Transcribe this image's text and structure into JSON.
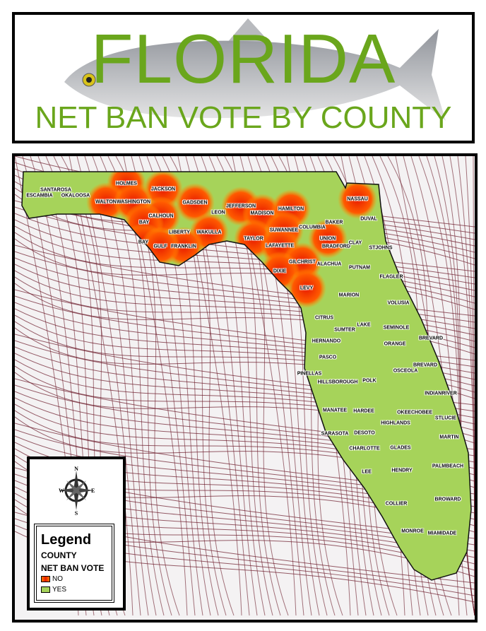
{
  "header": {
    "title": "FLORIDA",
    "subtitle": "NET BAN VOTE BY COUNTY"
  },
  "colors": {
    "no": "#ff5a00",
    "no_center": "#e81c00",
    "yes": "#a6d35a",
    "title_green": "#6aa61c",
    "net": "#6b1a2a"
  },
  "legend": {
    "title": "Legend",
    "layer": "COUNTY",
    "field": "NET BAN VOTE",
    "items": [
      {
        "label": "NO",
        "value": "no"
      },
      {
        "label": "YES",
        "value": "yes"
      }
    ]
  },
  "compass": {
    "icon": "compass-rose-icon",
    "n": "N",
    "s": "S",
    "e": "E",
    "w": "W"
  },
  "counties": [
    {
      "name": "ESCAMBIA",
      "vote": "YES"
    },
    {
      "name": "SANTAROSA",
      "vote": "YES"
    },
    {
      "name": "OKALOOSA",
      "vote": "YES"
    },
    {
      "name": "HOLMES",
      "vote": "NO"
    },
    {
      "name": "JACKSON",
      "vote": "NO"
    },
    {
      "name": "WALTON",
      "vote": "NO"
    },
    {
      "name": "WASHINGTON",
      "vote": "NO"
    },
    {
      "name": "GADSDEN",
      "vote": "NO"
    },
    {
      "name": "CALHOUN",
      "vote": "NO"
    },
    {
      "name": "BAY",
      "vote": "NO"
    },
    {
      "name": "BAY",
      "vote": "NO"
    },
    {
      "name": "LIBERTY",
      "vote": "YES"
    },
    {
      "name": "WAKULLA",
      "vote": "NO"
    },
    {
      "name": "FRANKLIN",
      "vote": "NO"
    },
    {
      "name": "GULF",
      "vote": "NO"
    },
    {
      "name": "LEON",
      "vote": "YES"
    },
    {
      "name": "JEFFERSON",
      "vote": "NO"
    },
    {
      "name": "MADISON",
      "vote": "NO"
    },
    {
      "name": "HAMILTON",
      "vote": "NO"
    },
    {
      "name": "TAYLOR",
      "vote": "NO"
    },
    {
      "name": "SUWANNEE",
      "vote": "NO"
    },
    {
      "name": "LAFAYETTE",
      "vote": "NO"
    },
    {
      "name": "COLUMBIA",
      "vote": "YES"
    },
    {
      "name": "BAKER",
      "vote": "YES"
    },
    {
      "name": "NASSAU",
      "vote": "NO"
    },
    {
      "name": "DUVAL",
      "vote": "YES"
    },
    {
      "name": "UNION",
      "vote": "NO"
    },
    {
      "name": "BRADFORD",
      "vote": "YES"
    },
    {
      "name": "CLAY",
      "vote": "YES"
    },
    {
      "name": "STJOHNS",
      "vote": "YES"
    },
    {
      "name": "GILCHRIST",
      "vote": "NO"
    },
    {
      "name": "ALACHUA",
      "vote": "YES"
    },
    {
      "name": "PUTNAM",
      "vote": "YES"
    },
    {
      "name": "FLAGLER",
      "vote": "YES"
    },
    {
      "name": "DIXIE",
      "vote": "NO"
    },
    {
      "name": "LEVY",
      "vote": "NO"
    },
    {
      "name": "MARION",
      "vote": "YES"
    },
    {
      "name": "VOLUSIA",
      "vote": "YES"
    },
    {
      "name": "CITRUS",
      "vote": "YES"
    },
    {
      "name": "SUMTER",
      "vote": "YES"
    },
    {
      "name": "LAKE",
      "vote": "YES"
    },
    {
      "name": "SEMINOLE",
      "vote": "YES"
    },
    {
      "name": "HERNANDO",
      "vote": "YES"
    },
    {
      "name": "ORANGE",
      "vote": "YES"
    },
    {
      "name": "BREVARD",
      "vote": "YES"
    },
    {
      "name": "BREVARD",
      "vote": "YES"
    },
    {
      "name": "PASCO",
      "vote": "YES"
    },
    {
      "name": "OSCEOLA",
      "vote": "YES"
    },
    {
      "name": "PINELLAS",
      "vote": "YES"
    },
    {
      "name": "HILLSBOROUGH",
      "vote": "YES"
    },
    {
      "name": "POLK",
      "vote": "YES"
    },
    {
      "name": "INDIANRIVER",
      "vote": "YES"
    },
    {
      "name": "MANATEE",
      "vote": "YES"
    },
    {
      "name": "HARDEE",
      "vote": "YES"
    },
    {
      "name": "OKEECHOBEE",
      "vote": "YES"
    },
    {
      "name": "STLUCIE",
      "vote": "YES"
    },
    {
      "name": "SARASOTA",
      "vote": "YES"
    },
    {
      "name": "DESOTO",
      "vote": "YES"
    },
    {
      "name": "HIGHLANDS",
      "vote": "YES"
    },
    {
      "name": "MARTIN",
      "vote": "YES"
    },
    {
      "name": "CHARLOTTE",
      "vote": "YES"
    },
    {
      "name": "GLADES",
      "vote": "YES"
    },
    {
      "name": "LEE",
      "vote": "YES"
    },
    {
      "name": "HENDRY",
      "vote": "YES"
    },
    {
      "name": "PALMBEACH",
      "vote": "YES"
    },
    {
      "name": "COLLIER",
      "vote": "YES"
    },
    {
      "name": "BROWARD",
      "vote": "YES"
    },
    {
      "name": "MONROE",
      "vote": "YES"
    },
    {
      "name": "MIAMIDADE",
      "vote": "YES"
    }
  ]
}
